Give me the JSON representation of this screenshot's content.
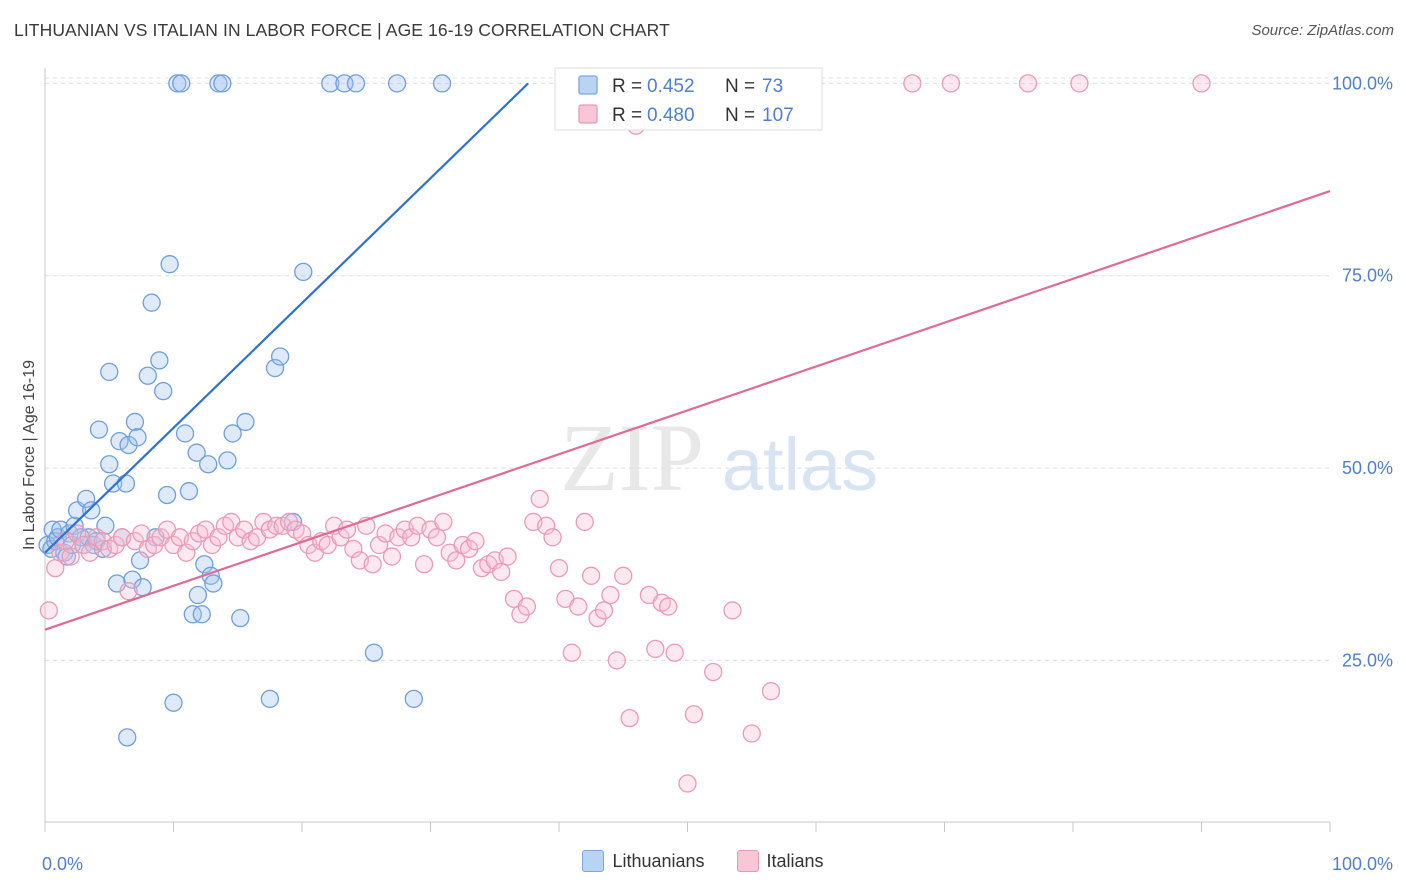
{
  "title": "LITHUANIAN VS ITALIAN IN LABOR FORCE | AGE 16-19 CORRELATION CHART",
  "source": "Source: ZipAtlas.com",
  "watermark": {
    "zip": "ZIP",
    "atlas": "atlas"
  },
  "colors": {
    "blue": "#4a86d8",
    "blue_line": "#2f72d0",
    "pink": "#e98aa8",
    "pink_line": "#e06b92",
    "tick_label": "#4f7fcf"
  },
  "legend_top": {
    "rows": [
      {
        "r_label": "R =",
        "r_value": "0.452",
        "n_label": "N =",
        "n_value": "73"
      },
      {
        "r_label": "R =",
        "r_value": "0.480",
        "n_label": "N =",
        "n_value": "107"
      }
    ]
  },
  "chart_data": {
    "type": "scatter",
    "xlabel": "",
    "ylabel": "In Labor Force | Age 16-19",
    "x_tick_labels": [
      "0.0%",
      "100.0%"
    ],
    "y_tick_labels": [
      "25.0%",
      "50.0%",
      "75.0%",
      "100.0%"
    ],
    "xlim": [
      0,
      100
    ],
    "ylim": [
      4,
      102
    ],
    "grid": true,
    "legend": "bottom-center",
    "series": [
      {
        "name": "Lithuanians",
        "r": 0.452,
        "n": 73,
        "trend": [
          [
            0,
            39.0
          ],
          [
            37.6,
            100.0
          ]
        ],
        "points": [
          [
            0.2,
            40
          ],
          [
            0.5,
            39.5
          ],
          [
            0.6,
            42
          ],
          [
            0.8,
            40.5
          ],
          [
            1.0,
            41
          ],
          [
            1.2,
            42
          ],
          [
            1.5,
            39
          ],
          [
            1.7,
            38.5
          ],
          [
            1.9,
            41.5
          ],
          [
            2.1,
            40
          ],
          [
            2.3,
            42.5
          ],
          [
            2.5,
            44.5
          ],
          [
            2.8,
            41
          ],
          [
            3.0,
            40
          ],
          [
            3.2,
            46
          ],
          [
            3.4,
            41
          ],
          [
            3.6,
            44.5
          ],
          [
            3.8,
            40
          ],
          [
            4.0,
            40.5
          ],
          [
            4.2,
            55
          ],
          [
            4.5,
            39.5
          ],
          [
            4.7,
            42.5
          ],
          [
            5.0,
            62.5
          ],
          [
            5.0,
            50.5
          ],
          [
            5.3,
            48
          ],
          [
            5.6,
            35
          ],
          [
            5.8,
            53.5
          ],
          [
            6.0,
            41
          ],
          [
            6.3,
            48
          ],
          [
            6.5,
            53
          ],
          [
            6.8,
            35.5
          ],
          [
            7.0,
            56
          ],
          [
            7.2,
            54
          ],
          [
            7.4,
            38
          ],
          [
            7.6,
            34.5
          ],
          [
            8.0,
            62
          ],
          [
            8.3,
            71.5
          ],
          [
            8.6,
            41
          ],
          [
            8.9,
            64
          ],
          [
            9.2,
            60
          ],
          [
            9.5,
            46.5
          ],
          [
            9.7,
            76.5
          ],
          [
            10.0,
            19.5
          ],
          [
            10.3,
            100
          ],
          [
            10.6,
            100
          ],
          [
            10.9,
            54.5
          ],
          [
            11.2,
            47
          ],
          [
            11.5,
            31
          ],
          [
            11.8,
            52
          ],
          [
            11.9,
            33.5
          ],
          [
            12.2,
            31
          ],
          [
            12.4,
            37.5
          ],
          [
            12.7,
            50.5
          ],
          [
            12.9,
            36
          ],
          [
            13.1,
            35
          ],
          [
            13.5,
            100
          ],
          [
            13.8,
            100
          ],
          [
            14.2,
            51
          ],
          [
            14.6,
            54.5
          ],
          [
            15.2,
            30.5
          ],
          [
            15.6,
            56
          ],
          [
            17.5,
            20
          ],
          [
            17.9,
            63
          ],
          [
            18.3,
            64.5
          ],
          [
            19.3,
            43
          ],
          [
            20.1,
            75.5
          ],
          [
            22.2,
            100
          ],
          [
            23.3,
            100
          ],
          [
            24.2,
            100
          ],
          [
            25.6,
            26
          ],
          [
            27.4,
            100
          ],
          [
            28.7,
            20
          ],
          [
            30.9,
            100
          ],
          [
            6.4,
            15
          ]
        ]
      },
      {
        "name": "Italians",
        "r": 0.48,
        "n": 107,
        "trend": [
          [
            0,
            29.0
          ],
          [
            100,
            86.0
          ]
        ],
        "points": [
          [
            0.3,
            31.5
          ],
          [
            0.8,
            37
          ],
          [
            1.2,
            39
          ],
          [
            1.6,
            40.5
          ],
          [
            2.0,
            38.5
          ],
          [
            2.5,
            41.5
          ],
          [
            3.0,
            40
          ],
          [
            3.5,
            39
          ],
          [
            4.0,
            41
          ],
          [
            4.5,
            40.5
          ],
          [
            5.0,
            39.5
          ],
          [
            5.5,
            40
          ],
          [
            6.0,
            41
          ],
          [
            6.5,
            34
          ],
          [
            7.0,
            40.5
          ],
          [
            7.5,
            41.5
          ],
          [
            8.0,
            39.5
          ],
          [
            8.5,
            40
          ],
          [
            9.0,
            41
          ],
          [
            9.5,
            42
          ],
          [
            10.0,
            40
          ],
          [
            10.5,
            41
          ],
          [
            11.0,
            39
          ],
          [
            11.5,
            40.5
          ],
          [
            12.0,
            41.5
          ],
          [
            12.5,
            42
          ],
          [
            13.0,
            40
          ],
          [
            13.5,
            41
          ],
          [
            14.0,
            42.5
          ],
          [
            14.5,
            43
          ],
          [
            15.0,
            41
          ],
          [
            15.5,
            42
          ],
          [
            16.0,
            40.5
          ],
          [
            16.5,
            41
          ],
          [
            17.0,
            43
          ],
          [
            17.5,
            42
          ],
          [
            18.0,
            42.5
          ],
          [
            18.5,
            42.5
          ],
          [
            19.0,
            43
          ],
          [
            19.5,
            42
          ],
          [
            20.0,
            41.5
          ],
          [
            20.5,
            40
          ],
          [
            21.0,
            39
          ],
          [
            21.5,
            40.5
          ],
          [
            22.0,
            40
          ],
          [
            22.5,
            42.5
          ],
          [
            23.0,
            41
          ],
          [
            23.5,
            42
          ],
          [
            24.0,
            39.5
          ],
          [
            24.5,
            38
          ],
          [
            25.0,
            42.5
          ],
          [
            25.5,
            37.5
          ],
          [
            26.0,
            40
          ],
          [
            26.5,
            41.5
          ],
          [
            27.0,
            38.5
          ],
          [
            27.5,
            41
          ],
          [
            28.0,
            42
          ],
          [
            28.5,
            41
          ],
          [
            29.0,
            42.5
          ],
          [
            29.5,
            37.5
          ],
          [
            30.0,
            42
          ],
          [
            30.5,
            41
          ],
          [
            31.0,
            43
          ],
          [
            31.5,
            39
          ],
          [
            32.0,
            38
          ],
          [
            32.5,
            40
          ],
          [
            33.0,
            39.5
          ],
          [
            33.5,
            40.5
          ],
          [
            34.0,
            37
          ],
          [
            34.5,
            37.5
          ],
          [
            35.0,
            38
          ],
          [
            35.5,
            36.5
          ],
          [
            36.0,
            38.5
          ],
          [
            36.5,
            33
          ],
          [
            37.0,
            31
          ],
          [
            37.5,
            32
          ],
          [
            38.0,
            43
          ],
          [
            38.5,
            46
          ],
          [
            39.0,
            42.5
          ],
          [
            39.5,
            41
          ],
          [
            40.0,
            37
          ],
          [
            40.5,
            33
          ],
          [
            41.0,
            26
          ],
          [
            41.5,
            32
          ],
          [
            42.0,
            43
          ],
          [
            42.5,
            36
          ],
          [
            43.0,
            30.5
          ],
          [
            43.5,
            31.5
          ],
          [
            44.0,
            33.5
          ],
          [
            44.5,
            25
          ],
          [
            45.0,
            36
          ],
          [
            45.5,
            17.5
          ],
          [
            46.0,
            94.5
          ],
          [
            47.0,
            33.5
          ],
          [
            47.5,
            26.5
          ],
          [
            48.0,
            32.5
          ],
          [
            48.5,
            32
          ],
          [
            49.0,
            26
          ],
          [
            50.0,
            9
          ],
          [
            50.5,
            18
          ],
          [
            52.0,
            23.5
          ],
          [
            53.5,
            31.5
          ],
          [
            55.0,
            15.5
          ],
          [
            56.5,
            21
          ],
          [
            67.5,
            100
          ],
          [
            70.5,
            100
          ],
          [
            76.5,
            100
          ],
          [
            80.5,
            100
          ],
          [
            90,
            100
          ]
        ]
      }
    ]
  }
}
